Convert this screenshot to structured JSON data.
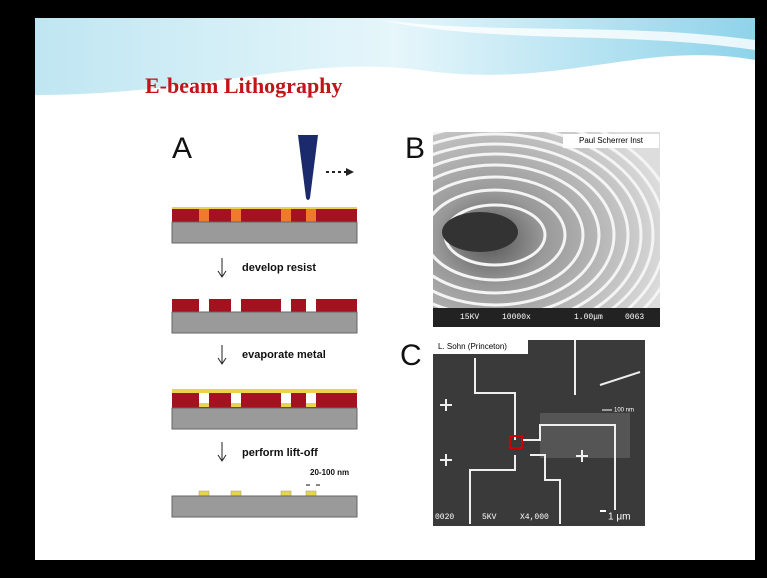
{
  "slide": {
    "title": "E-beam Lithography",
    "panel_a": {
      "label": "A",
      "steps": [
        "develop resist",
        "evaporate metal",
        "perform lift-off"
      ],
      "scale_note": "20-100 nm"
    },
    "panel_b": {
      "label": "B",
      "credit": "Paul Scherrer Inst",
      "overlay": [
        "15KV",
        "10000x",
        "1.00μm",
        "0063"
      ]
    },
    "panel_c": {
      "label": "C",
      "credit": "L. Sohn (Princeton)",
      "inset_scale": "100 nm",
      "overlay": [
        "0020",
        "5KV",
        "X4,000"
      ],
      "scale_bar": "1 μm"
    }
  }
}
